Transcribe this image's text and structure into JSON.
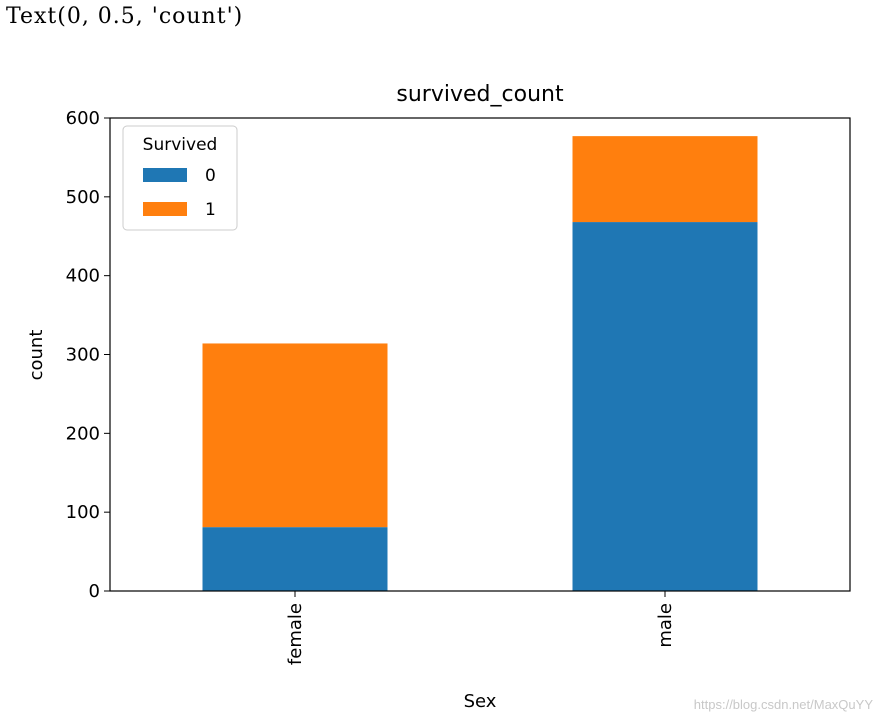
{
  "output_line": "Text(0, 0.5, 'count')",
  "watermark": "https://blog.csdn.net/MaxQuYY",
  "colors": {
    "series0": "#1f77b4",
    "series1": "#ff7f0e"
  },
  "chart_data": {
    "type": "bar",
    "stacked": true,
    "title": "survived_count",
    "xlabel": "Sex",
    "ylabel": "count",
    "categories": [
      "female",
      "male"
    ],
    "series": [
      {
        "name": "0",
        "values": [
          81,
          468
        ]
      },
      {
        "name": "1",
        "values": [
          233,
          109
        ]
      }
    ],
    "ylim": [
      0,
      600
    ],
    "yticks": [
      0,
      100,
      200,
      300,
      400,
      500,
      600
    ],
    "legend": {
      "title": "Survived",
      "position": "top-left"
    },
    "grid": false
  }
}
